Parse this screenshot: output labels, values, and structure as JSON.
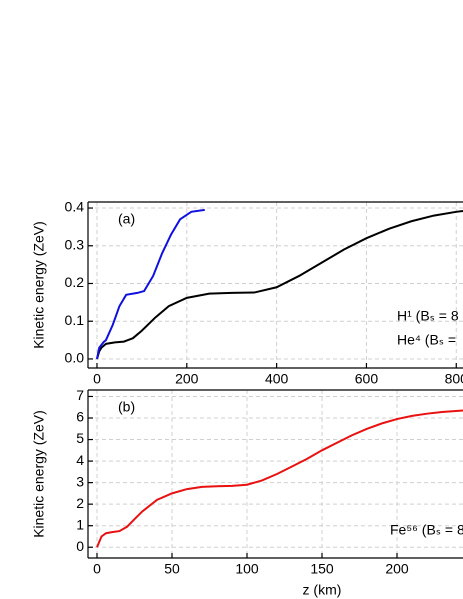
{
  "chart_data": [
    {
      "type": "line",
      "panel_label": "(a)",
      "y_label": "Kinetic energy (ZeV)",
      "xlim": [
        -20,
        815
      ],
      "ylim": [
        -0.024,
        0.416
      ],
      "xticks": [
        0,
        200,
        400,
        600,
        800
      ],
      "yticks": [
        {
          "value": 0,
          "label": "0.0"
        },
        0.1,
        0.2,
        0.3,
        0.4
      ],
      "grid": true,
      "series": [
        {
          "name": "H¹ (Bₛ = 8",
          "color": "#000000",
          "x": [
            0,
            5,
            10,
            20,
            40,
            60,
            80,
            100,
            130,
            160,
            200,
            250,
            300,
            350,
            400,
            450,
            500,
            550,
            600,
            650,
            700,
            750,
            800,
            815
          ],
          "values": [
            0,
            0.02,
            0.03,
            0.04,
            0.044,
            0.046,
            0.055,
            0.075,
            0.11,
            0.14,
            0.162,
            0.173,
            0.175,
            0.176,
            0.19,
            0.22,
            0.255,
            0.29,
            0.32,
            0.345,
            0.365,
            0.38,
            0.39,
            0.392
          ]
        },
        {
          "name": "He⁴ (Bₛ =",
          "color": "#1010e0",
          "x": [
            0,
            5,
            15,
            20,
            35,
            50,
            65,
            90,
            105,
            125,
            145,
            165,
            185,
            210,
            240
          ],
          "values": [
            0,
            0.03,
            0.045,
            0.05,
            0.09,
            0.14,
            0.17,
            0.175,
            0.18,
            0.22,
            0.28,
            0.33,
            0.37,
            0.39,
            0.395
          ]
        }
      ]
    },
    {
      "type": "line",
      "panel_label": "(b)",
      "y_label": "Kinetic energy (ZeV)",
      "x_label": "z (km)",
      "xlim": [
        -6,
        244
      ],
      "ylim": [
        -0.5,
        7.3
      ],
      "xticks": [
        0,
        50,
        100,
        150,
        200
      ],
      "yticks": [
        0,
        1,
        2,
        3,
        4,
        5,
        6,
        7
      ],
      "grid": true,
      "series": [
        {
          "name": "Fe⁵⁶ (Bₛ = 8",
          "color": "#e81010",
          "x": [
            0,
            3,
            6,
            10,
            15,
            20,
            25,
            30,
            40,
            50,
            60,
            70,
            80,
            90,
            100,
            110,
            120,
            130,
            140,
            150,
            160,
            170,
            180,
            190,
            200,
            210,
            220,
            230,
            244
          ],
          "values": [
            0,
            0.5,
            0.65,
            0.7,
            0.75,
            0.95,
            1.3,
            1.65,
            2.2,
            2.5,
            2.7,
            2.8,
            2.83,
            2.85,
            2.9,
            3.1,
            3.4,
            3.75,
            4.1,
            4.5,
            4.85,
            5.2,
            5.5,
            5.75,
            5.95,
            6.1,
            6.2,
            6.28,
            6.35
          ]
        }
      ]
    }
  ]
}
